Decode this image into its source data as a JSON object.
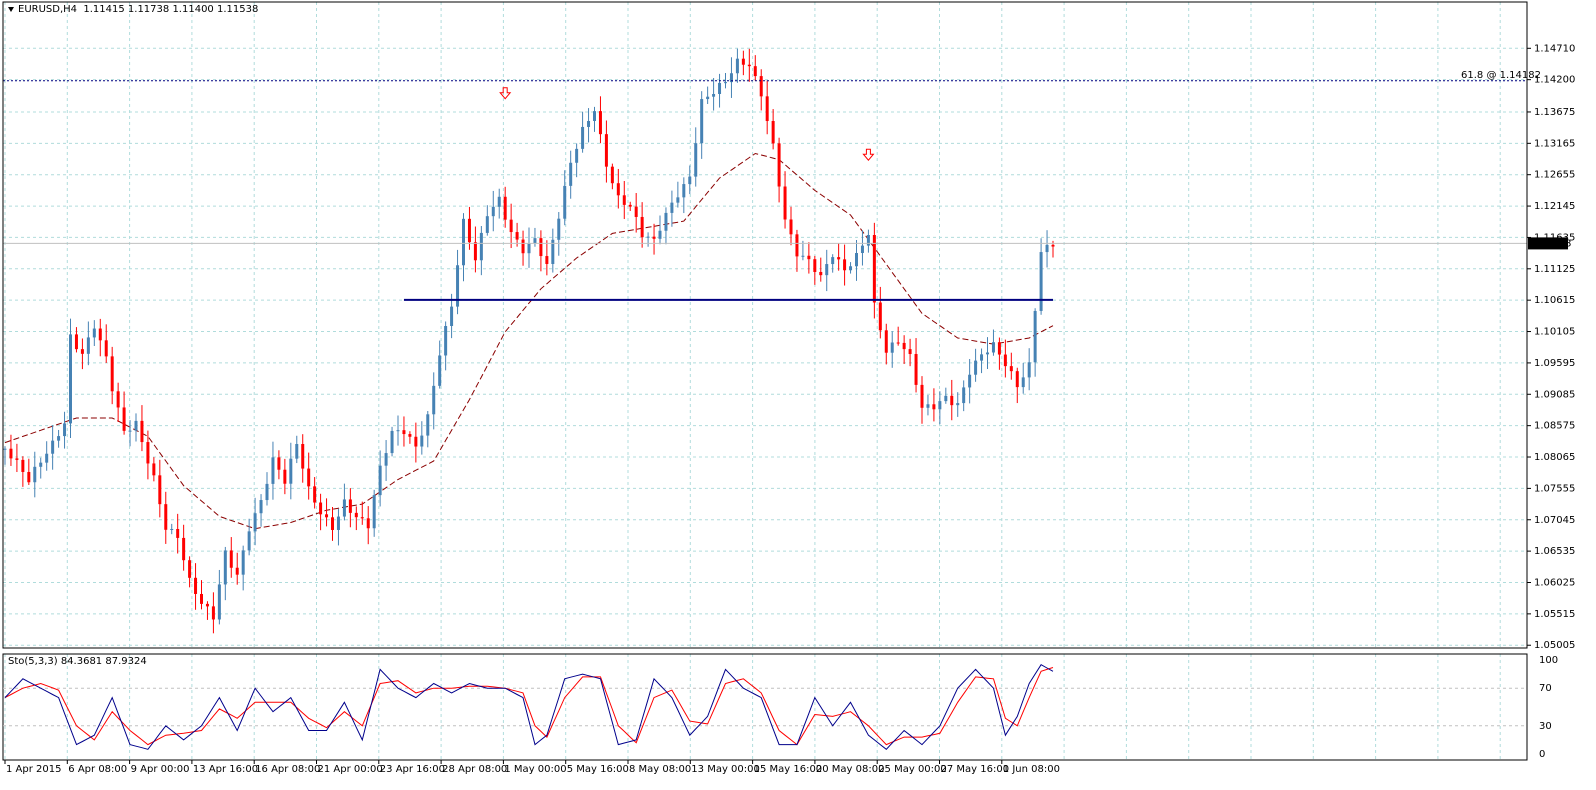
{
  "header": {
    "symbol": "EURUSD,H4",
    "ohlc": "1.11415 1.11738 1.11400 1.11538"
  },
  "indicator": {
    "label": "Sto(5,3,3) 84.3681 87.9324",
    "levels": [
      "100",
      "70",
      "30",
      "0"
    ]
  },
  "fib_label": "61.8 @ 1.14182",
  "current_price": "1.11538",
  "colors": {
    "up": "#4682b4",
    "down": "#ff0000",
    "grid": "#b0dcdc",
    "ma": "#8b0000",
    "support": "#000080",
    "fib": "#000080",
    "stoch_main": "#00008b",
    "stoch_signal": "#ff0000",
    "price_tag_bg": "#000000"
  },
  "chart_data": {
    "type": "candlestick",
    "symbol": "EURUSD",
    "timeframe": "H4",
    "y_ticks": [
      "1.14710",
      "1.14200",
      "1.13675",
      "1.13165",
      "1.12655",
      "1.12145",
      "1.11635",
      "1.11125",
      "1.10615",
      "1.10105",
      "1.09595",
      "1.09085",
      "1.08575",
      "1.08065",
      "1.07555",
      "1.07045",
      "1.06535",
      "1.06025",
      "1.05515",
      "1.05005"
    ],
    "ylim": [
      1.0496,
      1.1517
    ],
    "x_ticks": [
      "1 Apr 2015",
      "6 Apr 08:00",
      "9 Apr 00:00",
      "13 Apr 16:00",
      "16 Apr 08:00",
      "21 Apr 00:00",
      "23 Apr 16:00",
      "28 Apr 08:00",
      "1 May 00:00",
      "5 May 16:00",
      "8 May 08:00",
      "13 May 00:00",
      "15 May 16:00",
      "20 May 08:00",
      "25 May 00:00",
      "27 May 16:00",
      "1 Jun 08:00"
    ],
    "price_path": [
      [
        0,
        1.082
      ],
      [
        4,
        1.076
      ],
      [
        8,
        1.083
      ],
      [
        10,
        1.087
      ],
      [
        11,
        1.101
      ],
      [
        13,
        1.098
      ],
      [
        15,
        1.102
      ],
      [
        17,
        1.096
      ],
      [
        18,
        1.091
      ],
      [
        20,
        1.084
      ],
      [
        22,
        1.086
      ],
      [
        25,
        1.078
      ],
      [
        27,
        1.07
      ],
      [
        29,
        1.068
      ],
      [
        31,
        1.06
      ],
      [
        33,
        1.056
      ],
      [
        35,
        1.054
      ],
      [
        37,
        1.065
      ],
      [
        39,
        1.062
      ],
      [
        41,
        1.07
      ],
      [
        43,
        1.074
      ],
      [
        45,
        1.08
      ],
      [
        47,
        1.076
      ],
      [
        49,
        1.082
      ],
      [
        51,
        1.075
      ],
      [
        53,
        1.072
      ],
      [
        55,
        1.07
      ],
      [
        57,
        1.074
      ],
      [
        59,
        1.071
      ],
      [
        61,
        1.069
      ],
      [
        63,
        1.078
      ],
      [
        65,
        1.084
      ],
      [
        67,
        1.085
      ],
      [
        69,
        1.083
      ],
      [
        71,
        1.088
      ],
      [
        73,
        1.098
      ],
      [
        75,
        1.105
      ],
      [
        77,
        1.118
      ],
      [
        79,
        1.112
      ],
      [
        81,
        1.12
      ],
      [
        83,
        1.123
      ],
      [
        85,
        1.118
      ],
      [
        87,
        1.115
      ],
      [
        89,
        1.116
      ],
      [
        91,
        1.111
      ],
      [
        93,
        1.119
      ],
      [
        95,
        1.128
      ],
      [
        97,
        1.134
      ],
      [
        99,
        1.138
      ],
      [
        101,
        1.129
      ],
      [
        103,
        1.123
      ],
      [
        105,
        1.121
      ],
      [
        107,
        1.116
      ],
      [
        109,
        1.115
      ],
      [
        111,
        1.12
      ],
      [
        113,
        1.124
      ],
      [
        115,
        1.127
      ],
      [
        117,
        1.139
      ],
      [
        119,
        1.14
      ],
      [
        121,
        1.141
      ],
      [
        123,
        1.144
      ],
      [
        125,
        1.144
      ],
      [
        127,
        1.14
      ],
      [
        129,
        1.132
      ],
      [
        131,
        1.12
      ],
      [
        133,
        1.114
      ],
      [
        135,
        1.112
      ],
      [
        137,
        1.109
      ],
      [
        139,
        1.113
      ],
      [
        141,
        1.111
      ],
      [
        143,
        1.114
      ],
      [
        145,
        1.118
      ],
      [
        146,
        1.106
      ],
      [
        148,
        1.098
      ],
      [
        150,
        1.099
      ],
      [
        152,
        1.096
      ],
      [
        154,
        1.088
      ],
      [
        156,
        1.089
      ],
      [
        158,
        1.091
      ],
      [
        160,
        1.09
      ],
      [
        162,
        1.095
      ],
      [
        164,
        1.097
      ],
      [
        166,
        1.098
      ],
      [
        168,
        1.095
      ],
      [
        170,
        1.092
      ],
      [
        172,
        1.096
      ],
      [
        174,
        1.115
      ],
      [
        176,
        1.116
      ]
    ],
    "ma_path": [
      [
        0,
        1.083
      ],
      [
        6,
        1.085
      ],
      [
        12,
        1.087
      ],
      [
        18,
        1.087
      ],
      [
        24,
        1.084
      ],
      [
        30,
        1.076
      ],
      [
        36,
        1.071
      ],
      [
        42,
        1.069
      ],
      [
        48,
        1.07
      ],
      [
        54,
        1.072
      ],
      [
        60,
        1.073
      ],
      [
        66,
        1.077
      ],
      [
        72,
        1.08
      ],
      [
        78,
        1.09
      ],
      [
        84,
        1.101
      ],
      [
        90,
        1.108
      ],
      [
        96,
        1.113
      ],
      [
        102,
        1.117
      ],
      [
        108,
        1.118
      ],
      [
        114,
        1.119
      ],
      [
        120,
        1.126
      ],
      [
        126,
        1.13
      ],
      [
        130,
        1.129
      ],
      [
        136,
        1.124
      ],
      [
        142,
        1.12
      ],
      [
        148,
        1.112
      ],
      [
        154,
        1.104
      ],
      [
        160,
        1.1
      ],
      [
        166,
        1.099
      ],
      [
        172,
        1.1
      ],
      [
        176,
        1.102
      ]
    ],
    "support_level": 1.1062,
    "support_range": [
      67,
      176
    ],
    "fib_level": 1.14182,
    "down_arrows": [
      [
        84,
        1.135
      ],
      [
        145,
        1.125
      ]
    ],
    "stochastic": {
      "range": [
        0,
        100
      ],
      "levels": [
        70,
        30
      ],
      "main": [
        [
          0,
          60
        ],
        [
          3,
          80
        ],
        [
          6,
          70
        ],
        [
          9,
          60
        ],
        [
          12,
          10
        ],
        [
          15,
          20
        ],
        [
          18,
          60
        ],
        [
          21,
          10
        ],
        [
          24,
          5
        ],
        [
          27,
          30
        ],
        [
          30,
          15
        ],
        [
          33,
          30
        ],
        [
          36,
          60
        ],
        [
          39,
          25
        ],
        [
          42,
          70
        ],
        [
          45,
          45
        ],
        [
          48,
          60
        ],
        [
          51,
          25
        ],
        [
          54,
          25
        ],
        [
          57,
          55
        ],
        [
          60,
          15
        ],
        [
          63,
          90
        ],
        [
          66,
          70
        ],
        [
          69,
          60
        ],
        [
          72,
          75
        ],
        [
          75,
          65
        ],
        [
          78,
          75
        ],
        [
          81,
          70
        ],
        [
          84,
          70
        ],
        [
          87,
          60
        ],
        [
          89,
          10
        ],
        [
          91,
          20
        ],
        [
          94,
          80
        ],
        [
          97,
          85
        ],
        [
          100,
          80
        ],
        [
          103,
          10
        ],
        [
          106,
          15
        ],
        [
          109,
          80
        ],
        [
          112,
          60
        ],
        [
          115,
          20
        ],
        [
          118,
          40
        ],
        [
          121,
          90
        ],
        [
          124,
          70
        ],
        [
          127,
          60
        ],
        [
          130,
          10
        ],
        [
          133,
          10
        ],
        [
          136,
          60
        ],
        [
          139,
          30
        ],
        [
          142,
          55
        ],
        [
          145,
          20
        ],
        [
          148,
          5
        ],
        [
          151,
          25
        ],
        [
          154,
          10
        ],
        [
          157,
          30
        ],
        [
          160,
          70
        ],
        [
          163,
          90
        ],
        [
          166,
          70
        ],
        [
          168,
          20
        ],
        [
          170,
          40
        ],
        [
          172,
          75
        ],
        [
          174,
          95
        ],
        [
          176,
          88
        ]
      ],
      "signal": [
        [
          0,
          60
        ],
        [
          3,
          70
        ],
        [
          6,
          75
        ],
        [
          9,
          68
        ],
        [
          12,
          30
        ],
        [
          15,
          15
        ],
        [
          18,
          45
        ],
        [
          21,
          25
        ],
        [
          24,
          10
        ],
        [
          27,
          20
        ],
        [
          30,
          22
        ],
        [
          33,
          25
        ],
        [
          36,
          48
        ],
        [
          39,
          38
        ],
        [
          42,
          55
        ],
        [
          45,
          55
        ],
        [
          48,
          55
        ],
        [
          51,
          38
        ],
        [
          54,
          28
        ],
        [
          57,
          45
        ],
        [
          60,
          30
        ],
        [
          63,
          75
        ],
        [
          66,
          78
        ],
        [
          69,
          65
        ],
        [
          72,
          70
        ],
        [
          75,
          70
        ],
        [
          78,
          72
        ],
        [
          81,
          72
        ],
        [
          84,
          70
        ],
        [
          87,
          65
        ],
        [
          89,
          30
        ],
        [
          91,
          18
        ],
        [
          94,
          60
        ],
        [
          97,
          82
        ],
        [
          100,
          82
        ],
        [
          103,
          30
        ],
        [
          106,
          12
        ],
        [
          109,
          60
        ],
        [
          112,
          68
        ],
        [
          115,
          35
        ],
        [
          118,
          32
        ],
        [
          121,
          75
        ],
        [
          124,
          80
        ],
        [
          127,
          65
        ],
        [
          130,
          25
        ],
        [
          133,
          10
        ],
        [
          136,
          42
        ],
        [
          139,
          40
        ],
        [
          142,
          45
        ],
        [
          145,
          30
        ],
        [
          148,
          10
        ],
        [
          151,
          18
        ],
        [
          154,
          18
        ],
        [
          157,
          22
        ],
        [
          160,
          55
        ],
        [
          163,
          82
        ],
        [
          166,
          80
        ],
        [
          168,
          38
        ],
        [
          170,
          30
        ],
        [
          172,
          60
        ],
        [
          174,
          88
        ],
        [
          176,
          92
        ]
      ]
    }
  }
}
